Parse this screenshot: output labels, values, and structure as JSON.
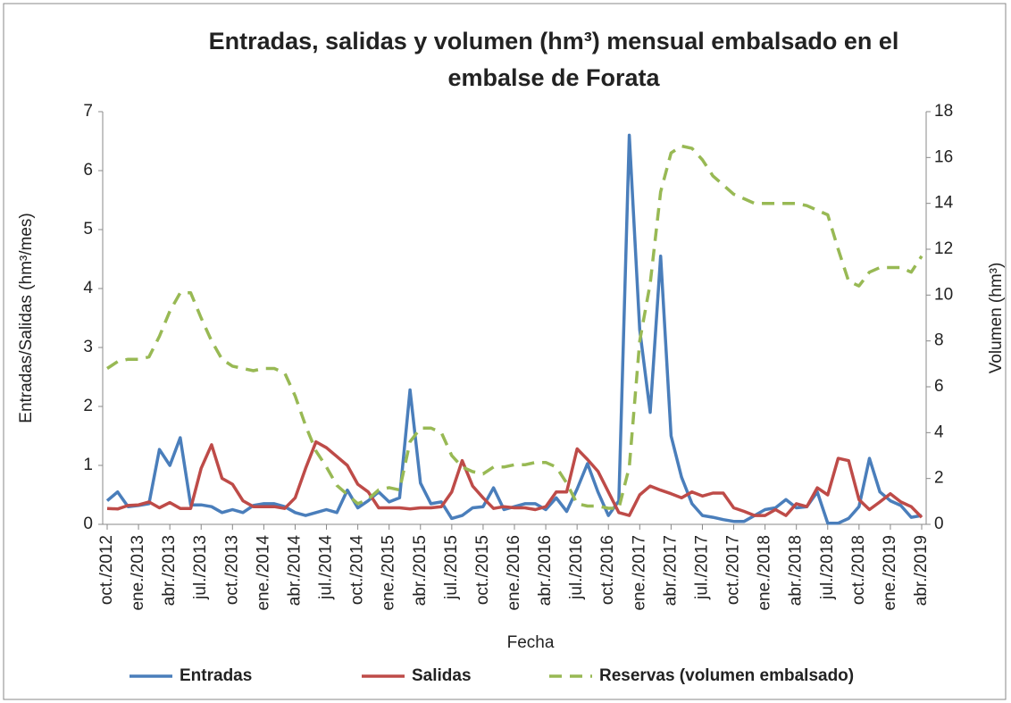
{
  "chart_data": {
    "type": "line",
    "title": "Entradas, salidas y volumen (hm³) mensual embalsado en el",
    "title_line2": "embalse de Forata",
    "x_label": "Fecha",
    "y_label": "Entradas/Salidas  (hm³/mes)",
    "y2_label": "Volumen (hm³)",
    "categories": [
      "oct./2012",
      null,
      null,
      "ene./2013",
      null,
      null,
      "abr./2013",
      null,
      null,
      "jul./2013",
      null,
      null,
      "oct./2013",
      null,
      null,
      "ene./2014",
      null,
      null,
      "abr./2014",
      null,
      null,
      "jul./2014",
      null,
      null,
      "oct./2014",
      null,
      null,
      "ene./2015",
      null,
      null,
      "abr./2015",
      null,
      null,
      "jul./2015",
      null,
      null,
      "oct./2015",
      null,
      null,
      "ene./2016",
      null,
      null,
      "abr./2016",
      null,
      null,
      "jul./2016",
      null,
      null,
      "oct./2016",
      null,
      null,
      "ene./2017",
      null,
      null,
      "abr./2017",
      null,
      null,
      "jul./2017",
      null,
      null,
      "oct./2017",
      null,
      null,
      "ene./2018",
      null,
      null,
      "abr./2018",
      null,
      null,
      "jul./2018",
      null,
      null,
      "oct./2018",
      null,
      null,
      "ene./2019",
      null,
      null,
      "abr./2019"
    ],
    "series": [
      {
        "name": "Entradas",
        "color": "#4a7ebb",
        "values": [
          0.4,
          0.55,
          0.3,
          0.32,
          0.35,
          1.27,
          1.0,
          1.47,
          0.33,
          0.33,
          0.3,
          0.2,
          0.25,
          0.2,
          0.32,
          0.35,
          0.35,
          0.3,
          0.2,
          0.15,
          0.2,
          0.25,
          0.2,
          0.58,
          0.28,
          0.4,
          0.55,
          0.38,
          0.45,
          2.28,
          0.7,
          0.35,
          0.38,
          0.1,
          0.15,
          0.28,
          0.3,
          0.62,
          0.25,
          0.3,
          0.35,
          0.35,
          0.25,
          0.45,
          0.22,
          0.6,
          1.03,
          0.55,
          0.15,
          0.4,
          6.6,
          3.3,
          1.9,
          4.55,
          1.5,
          0.8,
          0.35,
          0.15,
          0.12,
          0.08,
          0.05,
          0.05,
          0.15,
          0.25,
          0.28,
          0.42,
          0.28,
          0.3,
          0.55,
          0.02,
          0.02,
          0.1,
          0.3,
          1.12,
          0.55,
          0.4,
          0.32,
          0.12,
          0.15
        ]
      },
      {
        "name": "Salidas",
        "color": "#be4b48",
        "values": [
          0.27,
          0.26,
          0.32,
          0.33,
          0.38,
          0.28,
          0.37,
          0.27,
          0.27,
          0.95,
          1.35,
          0.78,
          0.68,
          0.4,
          0.3,
          0.3,
          0.3,
          0.27,
          0.45,
          0.95,
          1.4,
          1.3,
          1.15,
          1.0,
          0.68,
          0.55,
          0.28,
          0.28,
          0.28,
          0.26,
          0.28,
          0.28,
          0.3,
          0.55,
          1.08,
          0.65,
          0.45,
          0.27,
          0.3,
          0.28,
          0.28,
          0.25,
          0.3,
          0.55,
          0.55,
          1.28,
          1.1,
          0.9,
          0.55,
          0.2,
          0.15,
          0.5,
          0.65,
          0.58,
          0.52,
          0.45,
          0.55,
          0.48,
          0.53,
          0.53,
          0.28,
          0.22,
          0.15,
          0.15,
          0.25,
          0.15,
          0.35,
          0.3,
          0.62,
          0.5,
          1.12,
          1.08,
          0.42,
          0.25,
          0.38,
          0.52,
          0.38,
          0.3,
          0.12
        ]
      },
      {
        "name": "Reservas (volumen embalsado)",
        "color": "#98b954",
        "axis": "y2",
        "dashed": true,
        "values": [
          6.8,
          7.1,
          7.2,
          7.2,
          7.3,
          8.2,
          9.3,
          10.1,
          10.1,
          9.0,
          8.0,
          7.2,
          6.9,
          6.8,
          6.7,
          6.8,
          6.8,
          6.6,
          5.6,
          4.3,
          3.2,
          2.5,
          1.7,
          1.3,
          0.9,
          1.1,
          1.5,
          1.6,
          1.5,
          3.6,
          4.2,
          4.2,
          4.0,
          3.0,
          2.5,
          2.3,
          2.2,
          2.5,
          2.5,
          2.6,
          2.6,
          2.7,
          2.7,
          2.5,
          1.8,
          0.9,
          0.8,
          0.8,
          0.7,
          0.7,
          2.5,
          8.0,
          10.5,
          14.5,
          16.2,
          16.5,
          16.4,
          15.9,
          15.2,
          14.8,
          14.4,
          14.2,
          14.0,
          14.0,
          14.0,
          14.0,
          14.0,
          13.9,
          13.7,
          13.5,
          12.0,
          10.6,
          10.4,
          11.0,
          11.2,
          11.2,
          11.2,
          11.0,
          11.7
        ]
      }
    ],
    "ylim": [
      0,
      7
    ],
    "yticks": [
      0,
      1,
      2,
      3,
      4,
      5,
      6,
      7
    ],
    "y2lim": [
      0,
      18
    ],
    "y2ticks": [
      0,
      2,
      4,
      6,
      8,
      10,
      12,
      14,
      16,
      18
    ],
    "legend": "bottom",
    "grid": false
  }
}
